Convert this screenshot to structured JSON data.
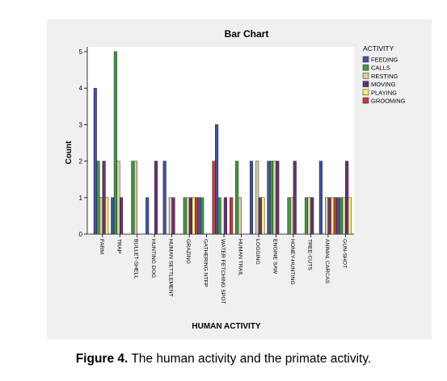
{
  "chart_data": {
    "type": "bar",
    "title": "Bar Chart",
    "xlabel": "HUMAN ACTIVITY",
    "ylabel": "Count",
    "ylim": [
      0,
      5
    ],
    "yticks": [
      "0",
      "1",
      "2",
      "3",
      "4",
      "5"
    ],
    "grid": false,
    "legend_position": "right",
    "legend_title": "ACTIVITY",
    "categories": [
      "FARM",
      "TRAP",
      "BULLET-SHELL",
      "HUNTING DOG",
      "HUMAN SETTLEMENT",
      "GRAZING",
      "GATHERING NTFP",
      "WATER FETCHING SPOT",
      "HUMAN TRAIL",
      "LOGGING",
      "ENGINE SAW",
      "HONEY-HUNTING",
      "TREE-CUTS",
      "ANIMAL CARCAS",
      "GUN-SHOT"
    ],
    "series": [
      {
        "name": "FEEDING",
        "color": "#3f51a8",
        "values": [
          4,
          1,
          0,
          1,
          2,
          0,
          1,
          3,
          0,
          2,
          2,
          0,
          0,
          2,
          1
        ]
      },
      {
        "name": "CALLS",
        "color": "#3f9a3f",
        "values": [
          2,
          5,
          2,
          0,
          0,
          1,
          1,
          1,
          2,
          0,
          2,
          1,
          1,
          0,
          1
        ]
      },
      {
        "name": "RESTING",
        "color": "#d8d0a6",
        "values": [
          1,
          2,
          2,
          0,
          1,
          1,
          0,
          0,
          1,
          2,
          2,
          1,
          1,
          1,
          1
        ]
      },
      {
        "name": "MOVING",
        "color": "#6b2f74",
        "values": [
          2,
          1,
          0,
          2,
          1,
          1,
          0,
          1,
          0,
          1,
          2,
          2,
          1,
          1,
          2
        ]
      },
      {
        "name": "PLAYING",
        "color": "#f2ee70",
        "values": [
          1,
          0,
          0,
          0,
          0,
          1,
          0,
          0,
          0,
          1,
          0,
          0,
          0,
          1,
          1
        ]
      },
      {
        "name": "GROOMING",
        "color": "#c93a3a",
        "values": [
          0,
          0,
          0,
          0,
          0,
          1,
          2,
          1,
          0,
          0,
          0,
          0,
          0,
          1,
          0
        ]
      }
    ]
  },
  "caption": {
    "label": "Figure 4.",
    "text": " The human activity and the primate activity."
  }
}
